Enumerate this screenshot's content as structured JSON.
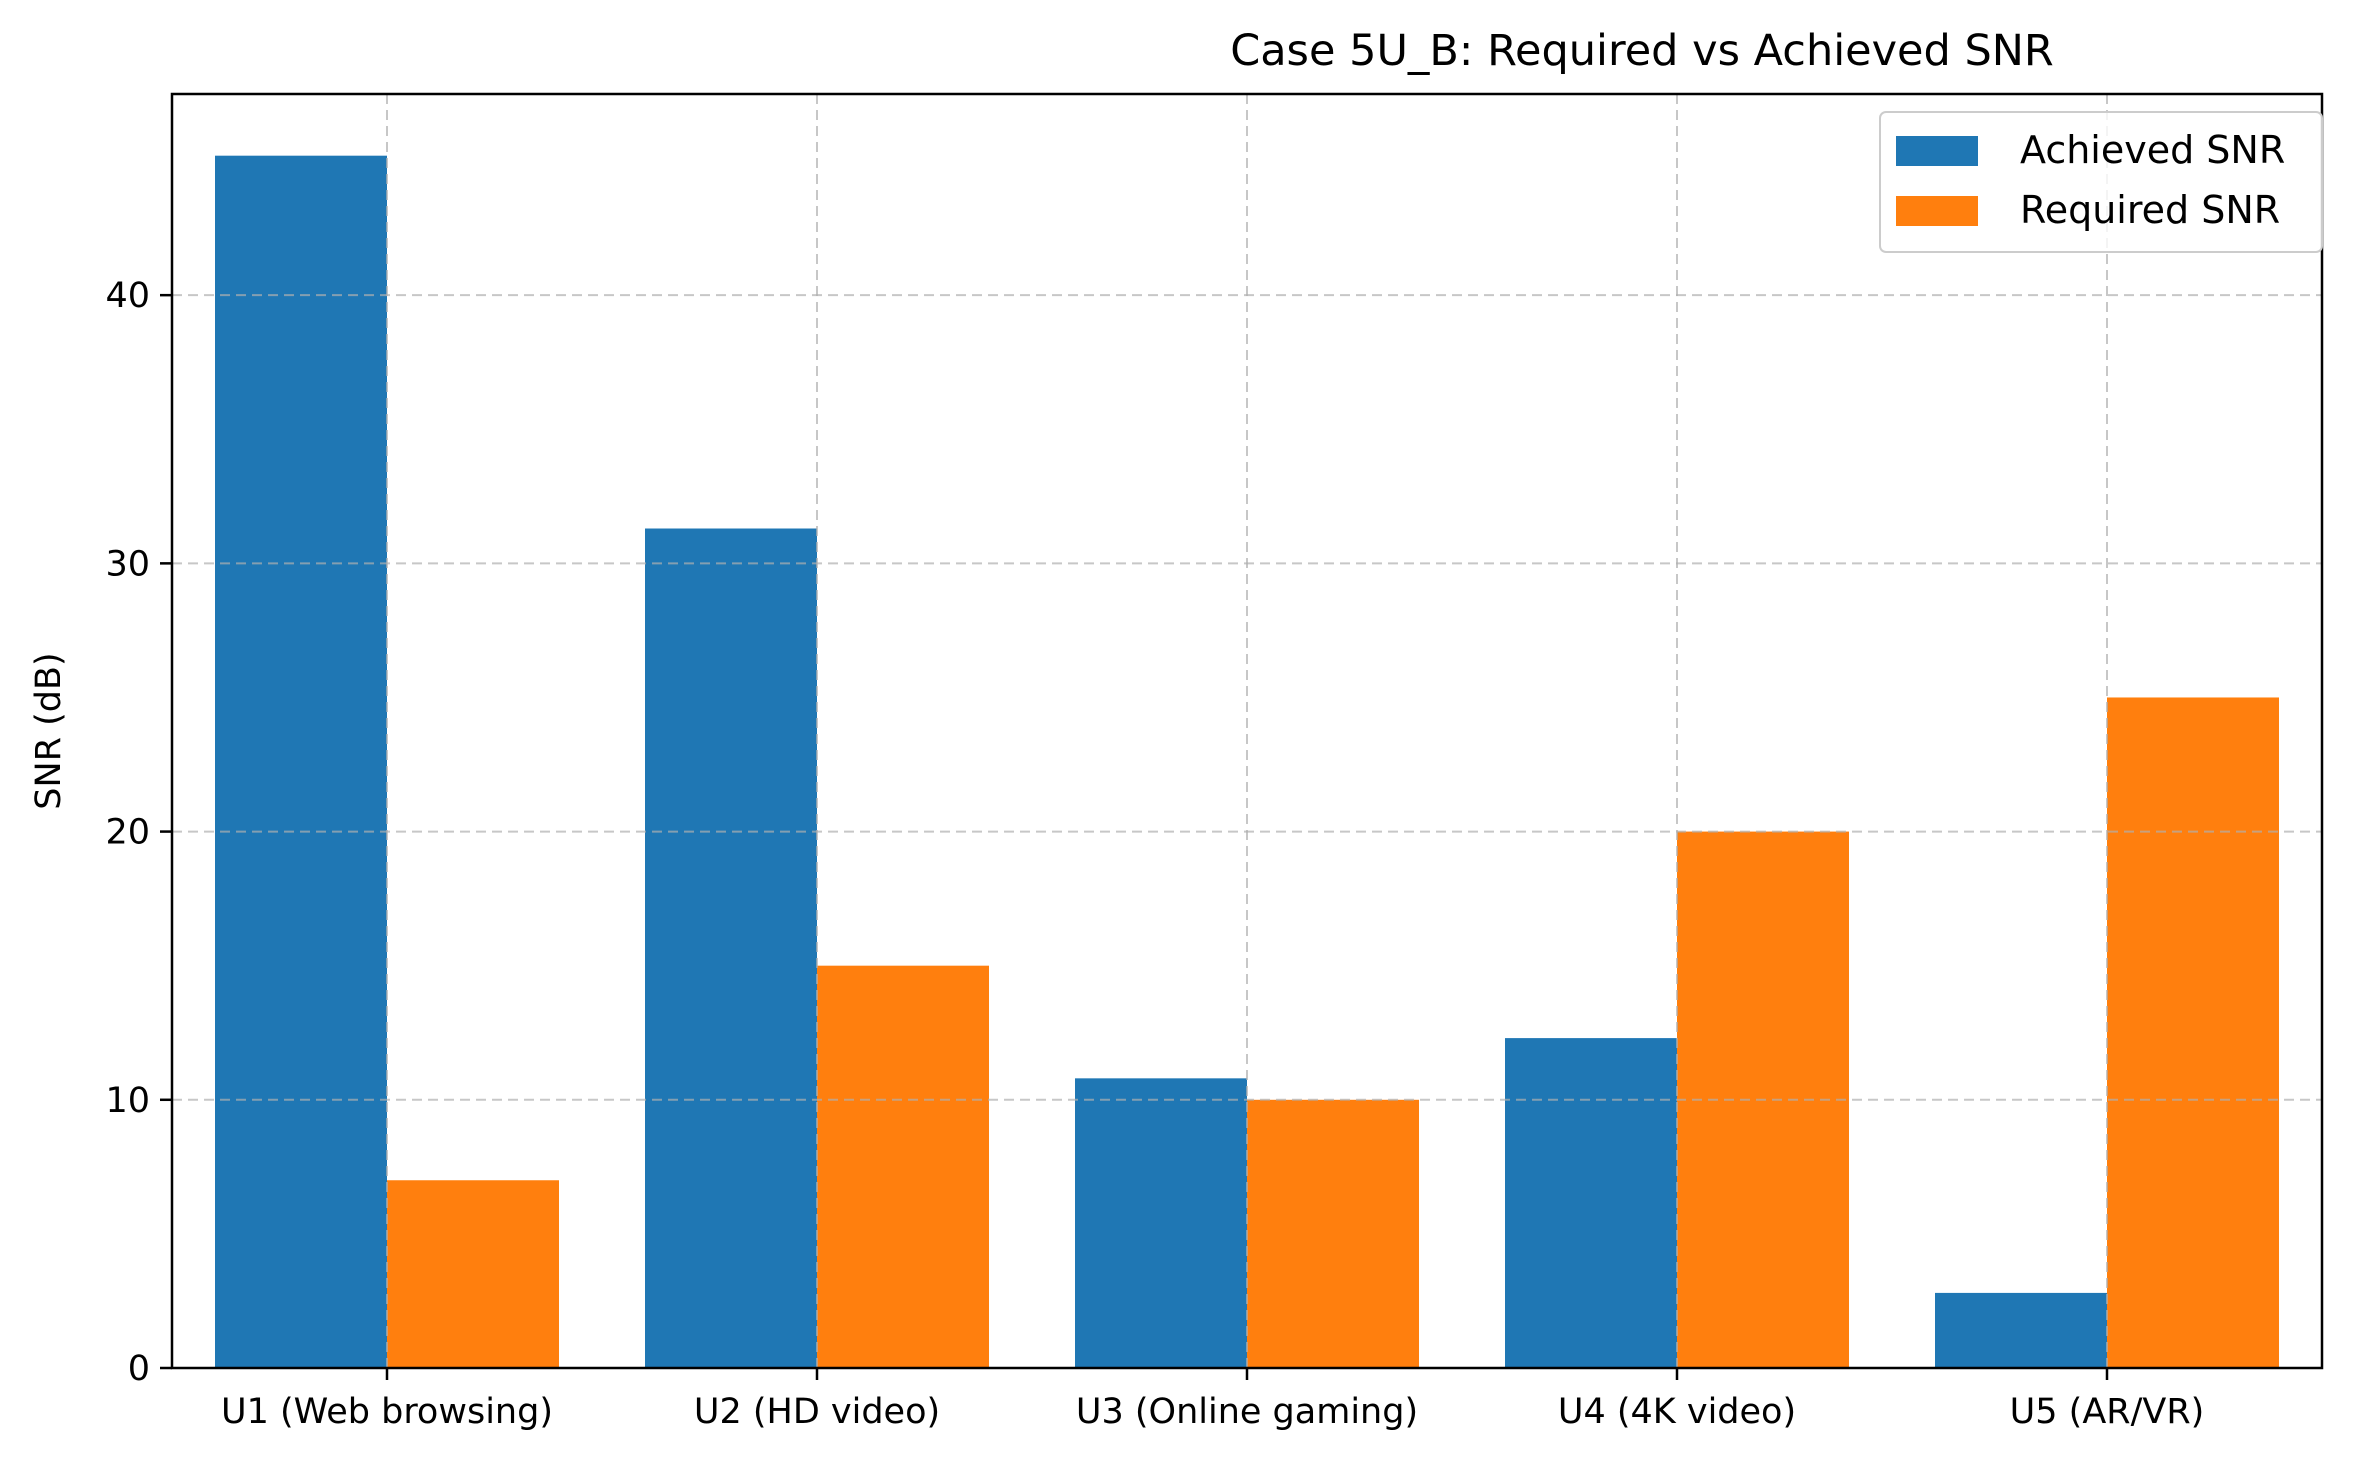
{
  "chart_data": {
    "type": "bar",
    "title": "Case 5U_B: Required vs Achieved SNR",
    "xlabel": "",
    "ylabel": "SNR (dB)",
    "ylim": [
      0,
      47.5
    ],
    "yticks": [
      0,
      10,
      20,
      30,
      40
    ],
    "grid": true,
    "legend_position": "top-right",
    "categories": [
      "U1 (Web browsing)",
      "U2 (HD video)",
      "U3 (Online gaming)",
      "U4 (4K video)",
      "U5 (AR/VR)"
    ],
    "series": [
      {
        "name": "Achieved SNR",
        "color": "#1f77b4",
        "values": [
          45.2,
          31.3,
          10.8,
          12.3,
          2.8
        ]
      },
      {
        "name": "Required SNR",
        "color": "#ff7f0e",
        "values": [
          7.0,
          15.0,
          10.0,
          20.0,
          25.0
        ]
      }
    ]
  }
}
